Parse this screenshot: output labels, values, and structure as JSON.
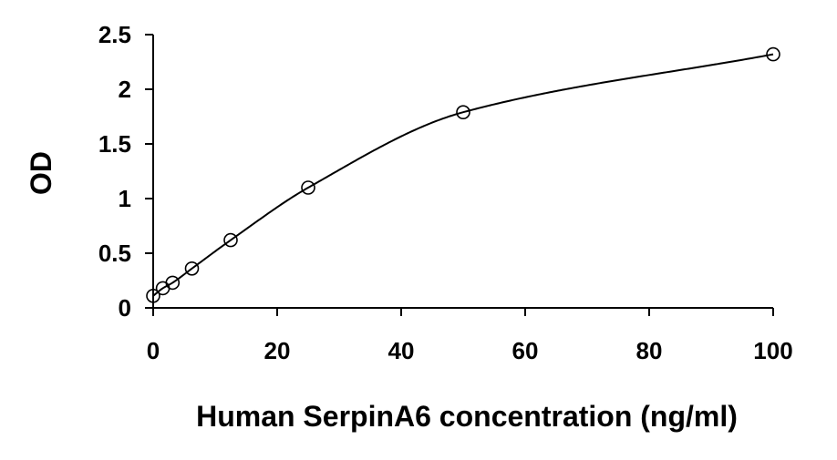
{
  "chart_data": {
    "type": "scatter",
    "title": "",
    "xlabel": "Human SerpinA6 concentration (ng/ml)",
    "ylabel": "OD",
    "xlim": [
      0,
      100
    ],
    "ylim": [
      0,
      2.5
    ],
    "x_ticks": [
      "0",
      "20",
      "40",
      "60",
      "80",
      "100"
    ],
    "y_ticks": [
      "0",
      "0.5",
      "1",
      "1.5",
      "2",
      "2.5"
    ],
    "grid": false,
    "legend": "none",
    "series": [
      {
        "marker": "open-circle",
        "fitted_curve": true,
        "x": [
          0,
          1.56,
          3.13,
          6.25,
          12.5,
          25,
          50,
          100
        ],
        "y": [
          0.11,
          0.18,
          0.23,
          0.36,
          0.62,
          1.1,
          1.79,
          2.32
        ]
      }
    ]
  }
}
